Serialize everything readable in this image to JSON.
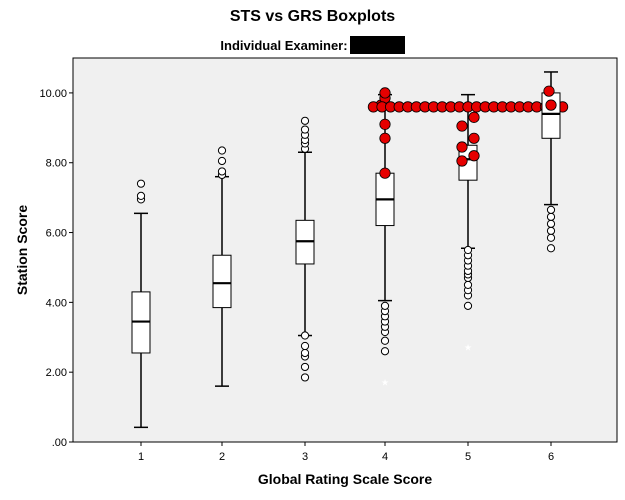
{
  "chart_data": {
    "type": "boxplot",
    "title": "STS vs GRS Boxplots",
    "subtitle_label": "Individual Examiner:",
    "xlabel": "Global Rating Scale Score",
    "ylabel": "Station Score",
    "ylim": [
      0,
      11
    ],
    "yticks": [
      0,
      2,
      4,
      6,
      8,
      10
    ],
    "ytick_labels": [
      ".00",
      "2.00",
      "4.00",
      "6.00",
      "8.00",
      "10.00"
    ],
    "categories": [
      "1",
      "2",
      "3",
      "4",
      "5",
      "6"
    ],
    "grid": false,
    "background": "#f0f0f0",
    "highlight_color": "#e60000",
    "boxes": [
      {
        "category": "1",
        "whisker_low": 0.42,
        "q1": 2.55,
        "median": 3.45,
        "q3": 4.3,
        "whisker_high": 6.55,
        "outliers": [
          6.95,
          7.05,
          7.4
        ],
        "highlighted": []
      },
      {
        "category": "2",
        "whisker_low": 1.6,
        "q1": 3.85,
        "median": 4.55,
        "q3": 5.35,
        "whisker_high": 7.6,
        "outliers": [
          7.65,
          7.75,
          8.05,
          8.35
        ],
        "highlighted": []
      },
      {
        "category": "3",
        "whisker_low": 3.05,
        "q1": 5.1,
        "median": 5.75,
        "q3": 6.35,
        "whisker_high": 8.3,
        "outliers": [
          1.85,
          2.15,
          2.45,
          2.55,
          2.75,
          3.05,
          8.4,
          8.55,
          8.65,
          8.8,
          8.95,
          9.2
        ],
        "highlighted": []
      },
      {
        "category": "4",
        "whisker_low": 4.05,
        "q1": 6.2,
        "median": 6.95,
        "q3": 7.7,
        "whisker_high": 9.95,
        "outliers": [
          2.6,
          2.9,
          3.15,
          3.3,
          3.45,
          3.6,
          3.75,
          3.9
        ],
        "highlighted": [
          7.7,
          8.7,
          9.1,
          9.65,
          9.85,
          10.0
        ]
      },
      {
        "category": "5",
        "whisker_low": 5.55,
        "q1": 7.5,
        "median": 8.1,
        "q3": 8.5,
        "whisker_high": 9.95,
        "outliers": [
          3.9,
          4.2,
          4.35,
          4.5,
          4.7,
          4.8,
          4.9,
          5.05,
          5.2,
          5.35,
          5.5
        ],
        "highlighted_row": {
          "value": 9.6,
          "count": 23
        },
        "highlighted": [
          8.05,
          8.2,
          8.45,
          8.7,
          9.05,
          9.3
        ]
      },
      {
        "category": "6",
        "whisker_low": 6.8,
        "q1": 8.7,
        "median": 9.4,
        "q3": 10.0,
        "whisker_high": 10.6,
        "outliers": [
          5.55,
          5.85,
          6.05,
          6.25,
          6.45,
          6.65
        ],
        "highlighted": [
          9.65,
          10.05
        ]
      }
    ],
    "extreme_markers": [
      {
        "category": "4",
        "value": 1.7
      },
      {
        "category": "5",
        "value": 2.7
      }
    ]
  }
}
